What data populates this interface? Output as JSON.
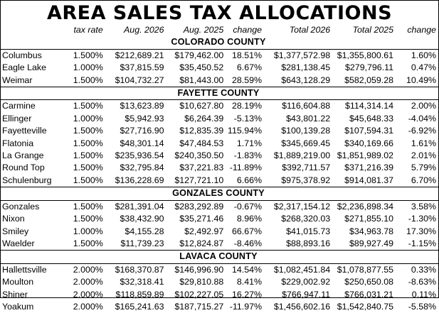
{
  "title": "AREA SALES TAX ALLOCATIONS",
  "columns": [
    "",
    "tax rate",
    "Aug. 2026",
    "Aug. 2025",
    "change",
    "Total 2026",
    "Total 2025",
    "change"
  ],
  "groups": [
    {
      "county": "COLORADO COUNTY",
      "rows": [
        [
          "Columbus",
          "1.500%",
          "$212,689.21",
          "$179,462.00",
          "18.51%",
          "$1,377,572.98",
          "$1,355,800.61",
          "1.60%"
        ],
        [
          "Eagle Lake",
          "1.000%",
          "$37,815.59",
          "$35,450.52",
          "6.67%",
          "$281,138.45",
          "$279,796.11",
          "0.47%"
        ],
        [
          "Weimar",
          "1.500%",
          "$104,732.27",
          "$81,443.00",
          "28.59%",
          "$643,128.29",
          "$582,059.28",
          "10.49%"
        ]
      ]
    },
    {
      "county": "FAYETTE COUNTY",
      "rows": [
        [
          "Carmine",
          "1.500%",
          "$13,623.89",
          "$10,627.80",
          "28.19%",
          "$116,604.88",
          "$114,314.14",
          "2.00%"
        ],
        [
          "Ellinger",
          "1.000%",
          "$5,942.93",
          "$6,264.39",
          "-5.13%",
          "$43,801.22",
          "$45,648.33",
          "-4.04%"
        ],
        [
          "Fayetteville",
          "1.500%",
          "$27,716.90",
          "$12,835.39",
          "115.94%",
          "$100,139.28",
          "$107,594.31",
          "-6.92%"
        ],
        [
          "Flatonia",
          "1.500%",
          "$48,301.14",
          "$47,484.53",
          "1.71%",
          "$345,669.45",
          "$340,169.66",
          "1.61%"
        ],
        [
          "La Grange",
          "1.500%",
          "$235,936.54",
          "$240,350.50",
          "-1.83%",
          "$1,889,219.00",
          "$1,851,989.02",
          "2.01%"
        ],
        [
          "Round Top",
          "1.500%",
          "$32,795.84",
          "$37,221.83",
          "-11.89%",
          "$392,711.57",
          "$371,216.39",
          "5.79%"
        ],
        [
          "Schulenburg",
          "1.500%",
          "$136,228.69",
          "$127,721.10",
          "6.66%",
          "$975,378.92",
          "$914,081.37",
          "6.70%"
        ]
      ]
    },
    {
      "county": "GONZALES COUNTY",
      "rows": [
        [
          "Gonzales",
          "1.500%",
          "$281,391.04",
          "$283,292.89",
          "-0.67%",
          "$2,317,154.12",
          "$2,236,898.34",
          "3.58%"
        ],
        [
          "Nixon",
          "1.500%",
          "$38,432.90",
          "$35,271.46",
          "8.96%",
          "$268,320.03",
          "$271,855.10",
          "-1.30%"
        ],
        [
          "Smiley",
          "1.000%",
          "$4,155.28",
          "$2,492.97",
          "66.67%",
          "$41,015.73",
          "$34,963.78",
          "17.30%"
        ],
        [
          "Waelder",
          "1.500%",
          "$11,739.23",
          "$12,824.87",
          "-8.46%",
          "$88,893.16",
          "$89,927.49",
          "-1.15%"
        ]
      ]
    },
    {
      "county": "LAVACA COUNTY",
      "rows": [
        [
          "Hallettsville",
          "2.000%",
          "$168,370.87",
          "$146,996.90",
          "14.54%",
          "$1,082,451.84",
          "$1,078,877.55",
          "0.33%"
        ],
        [
          "Moulton",
          "2.000%",
          "$32,318.41",
          "$29,810.88",
          "8.41%",
          "$229,002.92",
          "$250,650.08",
          "-8.63%"
        ],
        [
          "Shiner",
          "2.000%",
          "$118,859.89",
          "$102,227.05",
          "16.27%",
          "$766,947.11",
          "$766,031.21",
          "0.11%"
        ],
        [
          "Yoakum",
          "2.000%",
          "$165,241.63",
          "$187,715.27",
          "-11.97%",
          "$1,456,602.16",
          "$1,542,840.75",
          "-5.58%"
        ]
      ]
    }
  ]
}
